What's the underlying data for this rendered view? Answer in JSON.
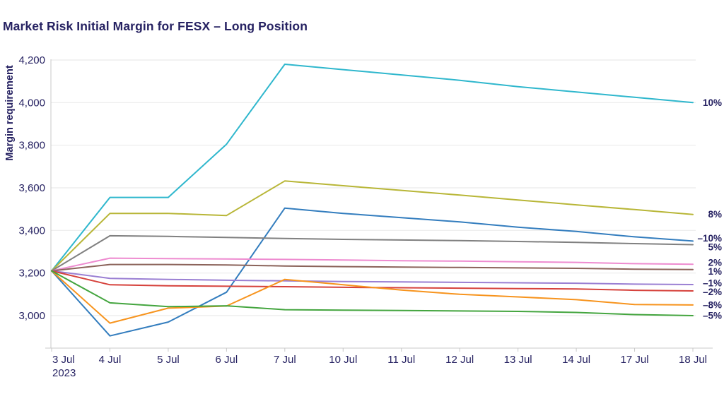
{
  "header": {
    "title": "Market Risk Initial Margin for FESX – Long Position"
  },
  "chart_data": {
    "type": "line",
    "title": "Market Risk Initial Margin for FESX – Long Position",
    "xlabel": "",
    "ylabel": "Margin requirement",
    "x_tick_labels": [
      "3 Jul",
      "4 Jul",
      "5 Jul",
      "6 Jul",
      "7 Jul",
      "10 Jul",
      "11 Jul",
      "12 Jul",
      "13 Jul",
      "14 Jul",
      "17 Jul",
      "18 Jul"
    ],
    "x_first_label_year": "2023",
    "y_ticks": [
      4200,
      4000,
      3800,
      3600,
      3400,
      3200,
      3000
    ],
    "y_tick_labels": [
      "4,200",
      "4,000",
      "3,800",
      "3,600",
      "3,400",
      "3,200",
      "3,000"
    ],
    "ylim": [
      2880,
      4230
    ],
    "grid": "horizontal",
    "legend_position": "end-of-line-right",
    "series": [
      {
        "name": "10%",
        "color": "#2fb7cd",
        "values": [
          3210,
          3555,
          3555,
          3805,
          4180,
          4155,
          4130,
          4105,
          4075,
          4050,
          4025,
          4000
        ]
      },
      {
        "name": "8%",
        "color": "#b8b637",
        "values": [
          3210,
          3480,
          3480,
          3470,
          3632,
          3610,
          3588,
          3566,
          3543,
          3520,
          3498,
          3475
        ]
      },
      {
        "name": "–10%",
        "color": "#337dbe",
        "values": [
          3210,
          2905,
          2970,
          3110,
          3505,
          3480,
          3460,
          3440,
          3415,
          3395,
          3370,
          3350
        ]
      },
      {
        "name": "5%",
        "color": "#808080",
        "values": [
          3210,
          3375,
          3372,
          3367,
          3362,
          3358,
          3355,
          3352,
          3348,
          3344,
          3338,
          3333
        ]
      },
      {
        "name": "2%",
        "color": "#ee8bd0",
        "values": [
          3210,
          3270,
          3268,
          3266,
          3264,
          3261,
          3258,
          3256,
          3253,
          3250,
          3244,
          3241
        ]
      },
      {
        "name": "1%",
        "color": "#8b635a",
        "values": [
          3210,
          3240,
          3240,
          3238,
          3233,
          3230,
          3228,
          3226,
          3224,
          3222,
          3218,
          3216
        ]
      },
      {
        "name": "–1%",
        "color": "#9a7fd3",
        "values": [
          3210,
          3175,
          3170,
          3166,
          3163,
          3160,
          3158,
          3156,
          3154,
          3152,
          3148,
          3146
        ]
      },
      {
        "name": "–2%",
        "color": "#d6423c",
        "values": [
          3210,
          3145,
          3140,
          3138,
          3136,
          3133,
          3131,
          3129,
          3127,
          3125,
          3119,
          3116
        ]
      },
      {
        "name": "–8%",
        "color": "#f7941e",
        "values": [
          3210,
          2965,
          3035,
          3045,
          3170,
          3145,
          3120,
          3100,
          3088,
          3075,
          3052,
          3050
        ]
      },
      {
        "name": "–5%",
        "color": "#44a53f",
        "values": [
          3210,
          3060,
          3042,
          3046,
          3028,
          3026,
          3024,
          3022,
          3020,
          3015,
          3005,
          3000
        ]
      }
    ],
    "colors": {
      "text": "#262262",
      "grid": "#ebebeb",
      "axis": "#c8c8c8"
    }
  }
}
